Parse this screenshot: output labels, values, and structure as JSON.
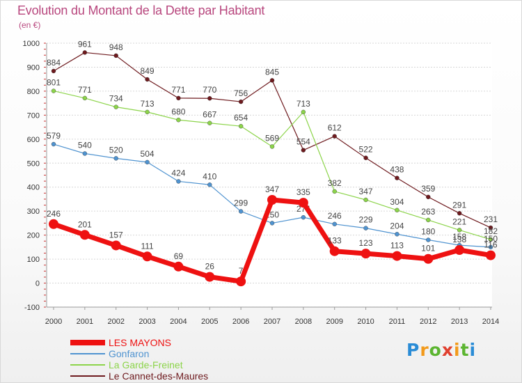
{
  "header": {
    "title": "Evolution du Montant de la Dette par Habitant",
    "unit": "(en €)"
  },
  "logo": {
    "text": "Proxiti",
    "colors": [
      "#2a8cd6",
      "#f29a1b",
      "#5cb531",
      "#e0402f"
    ]
  },
  "chart_data": {
    "type": "line",
    "title": "Evolution du Montant de la Dette par Habitant",
    "ylabel": "(en €)",
    "xlabel": "",
    "x": [
      "2000",
      "2001",
      "2002",
      "2003",
      "2004",
      "2005",
      "2006",
      "2007",
      "2008",
      "2009",
      "2010",
      "2011",
      "2012",
      "2013",
      "2014"
    ],
    "ylim": [
      -100,
      1000
    ],
    "yticks": [
      -100,
      0,
      100,
      200,
      300,
      400,
      500,
      600,
      700,
      800,
      900,
      1000
    ],
    "grid": "horizontal",
    "legend_position": "bottom-left",
    "series": [
      {
        "name": "Le Cannet-des-Maures",
        "color": "#6e1a1e",
        "values": [
          884,
          961,
          948,
          849,
          771,
          770,
          756,
          845,
          554,
          612,
          522,
          438,
          359,
          291,
          231
        ]
      },
      {
        "name": "La Garde-Freinet",
        "color": "#8cd44a",
        "values": [
          801,
          771,
          734,
          713,
          680,
          667,
          654,
          569,
          713,
          382,
          347,
          304,
          263,
          221,
          182
        ]
      },
      {
        "name": "Gonfaron",
        "color": "#4f93d0",
        "values": [
          579,
          540,
          520,
          504,
          424,
          410,
          299,
          250,
          274,
          246,
          229,
          204,
          180,
          158,
          150
        ]
      },
      {
        "name": "LES MAYONS",
        "color": "#ee1111",
        "values": [
          246,
          201,
          157,
          111,
          69,
          26,
          7,
          347,
          335,
          133,
          123,
          113,
          101,
          138,
          116
        ]
      }
    ],
    "legend": [
      {
        "name": "LES MAYONS",
        "color": "#ee1111"
      },
      {
        "name": "Gonfaron",
        "color": "#4f93d0"
      },
      {
        "name": "La Garde-Freinet",
        "color": "#8cd44a"
      },
      {
        "name": "Le Cannet-des-Maures",
        "color": "#6e1a1e"
      }
    ]
  }
}
